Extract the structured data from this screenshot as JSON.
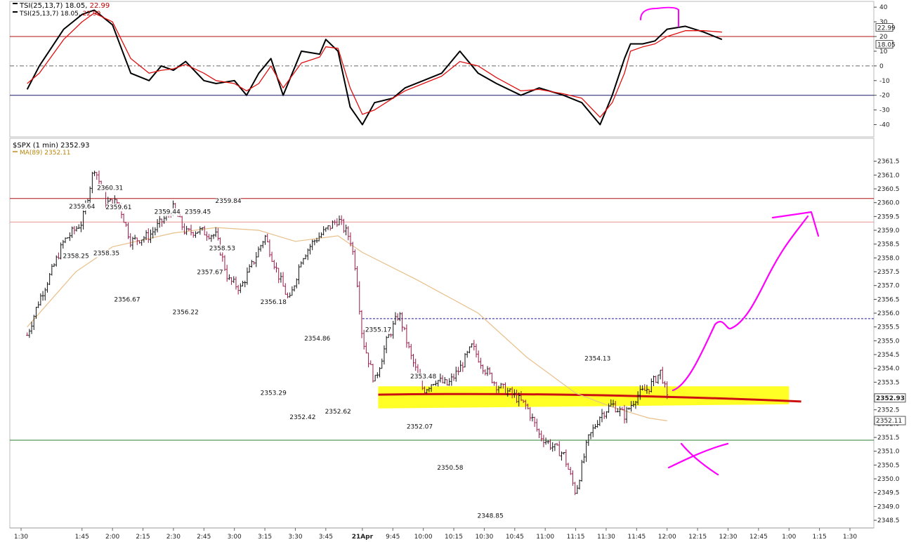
{
  "chart_data": [
    {
      "type": "line",
      "name": "tsi-panel",
      "legend": {
        "tsi_label": "TSI(25,13,7)",
        "tsi_value": "18.05",
        "signal_value": "22.99",
        "placement": "top-left"
      },
      "colors": {
        "tsi": "#000000",
        "signal": "#e01010",
        "upper_ref": "#b01010",
        "lower_ref": "#1a1a6e",
        "zero_ref": "#666666"
      },
      "ylim": [
        -45,
        42
      ],
      "y_ticks": [
        40,
        30,
        20,
        10,
        0,
        -10,
        -20,
        -30,
        -40
      ],
      "reference_lines": [
        20,
        0,
        -20
      ],
      "right_badges": [
        "22.99",
        "18.05"
      ],
      "x": [
        1.3,
        1.4,
        1.6,
        1.75,
        1.85,
        2.0,
        2.15,
        2.3,
        2.4,
        2.5,
        2.6,
        2.75,
        2.85,
        3.0,
        3.1,
        3.2,
        3.3,
        3.4,
        3.55,
        3.7,
        3.75,
        3.85,
        3.95,
        4.05,
        4.15,
        4.3,
        4.4,
        4.55,
        4.7,
        4.85,
        5.0,
        5.15,
        5.35,
        5.5,
        5.7,
        5.85,
        6.0,
        6.1,
        6.2,
        6.25,
        6.35,
        6.45,
        6.55,
        6.7,
        6.85,
        7.0
      ],
      "series": [
        {
          "values": [
            -16,
            0,
            25,
            35,
            38,
            28,
            -5,
            -10,
            0,
            -3,
            3,
            -10,
            -12,
            -10,
            -20,
            -5,
            5,
            -20,
            10,
            8,
            18,
            10,
            -28,
            -40,
            -25,
            -22,
            -15,
            -10,
            -5,
            10,
            -5,
            -12,
            -20,
            -15,
            -20,
            -25,
            -40,
            -20,
            5,
            15,
            15,
            17,
            25,
            27,
            23,
            18
          ]
        },
        {
          "values": [
            -12,
            -5,
            18,
            30,
            36,
            30,
            5,
            -5,
            -3,
            -2,
            1,
            -5,
            -10,
            -12,
            -17,
            -12,
            0,
            -15,
            2,
            6,
            13,
            12,
            -15,
            -33,
            -30,
            -22,
            -17,
            -12,
            -7,
            3,
            0,
            -8,
            -17,
            -16,
            -19,
            -22,
            -35,
            -25,
            -5,
            10,
            13,
            15,
            20,
            24,
            24,
            23
          ]
        }
      ]
    },
    {
      "type": "candlestick",
      "name": "price-panel",
      "legend": {
        "symbol_label": "$SPX (1 min)",
        "symbol_value": "2352.93",
        "ma_label": "MA(89)",
        "ma_value": "2352.11",
        "placement": "top-left"
      },
      "colors": {
        "up": "#111111",
        "down": "#9b1a4a",
        "ma": "#e8c08a",
        "highlight": "#ffff00",
        "annot": "#ff00ff",
        "support": "#cc1111",
        "resist_red": "#b01010",
        "resist_pink": "#e89090",
        "support_green": "#2e7d32",
        "dashed": "#1a1a9e"
      },
      "ylim": [
        2348.4,
        2362.0
      ],
      "y_ticks": [
        "2361.5",
        "2361.0",
        "2360.5",
        "2360.0",
        "2359.5",
        "2359.0",
        "2358.5",
        "2358.0",
        "2357.5",
        "2357.0",
        "2356.5",
        "2356.0",
        "2355.5",
        "2355.0",
        "2354.5",
        "2354.0",
        "2353.5",
        "2353.0",
        "2352.5",
        "2352.0",
        "2351.5",
        "2351.0",
        "2350.5",
        "2350.0",
        "2349.5",
        "2349.0",
        "2348.5"
      ],
      "reference_lines": {
        "red": 2360.15,
        "pink": 2359.3,
        "dashed_blue": 2355.8,
        "green": 2351.4,
        "highlight": 2353.0
      },
      "right_badges": [
        "2352.93",
        "2352.11"
      ],
      "x_tick_labels": [
        "1:30",
        "1:45",
        "2:00",
        "2:15",
        "2:30",
        "2:45",
        "3:00",
        "3:15",
        "3:30",
        "3:45",
        "21Apr",
        "9:45",
        "10:00",
        "10:15",
        "10:30",
        "10:45",
        "11:00",
        "11:15",
        "11:30",
        "11:45",
        "12:00",
        "12:15",
        "12:30",
        "12:45",
        "1:00",
        "1:15",
        "1:30"
      ],
      "x_tick_values": [
        1.25,
        1.75,
        2.0,
        2.25,
        2.5,
        2.75,
        3.0,
        3.25,
        3.5,
        3.75,
        4.05,
        4.3,
        4.55,
        4.8,
        5.05,
        5.3,
        5.55,
        5.8,
        6.05,
        6.3,
        6.55,
        6.8,
        7.05,
        7.3,
        7.55,
        7.8,
        8.05
      ],
      "price_path": [
        [
          1.3,
          2355.2
        ],
        [
          1.4,
          2356.5
        ],
        [
          1.5,
          2357.5
        ],
        [
          1.6,
          2358.6
        ],
        [
          1.75,
          2359.3
        ],
        [
          1.85,
          2361.3
        ],
        [
          1.95,
          2360.0
        ],
        [
          2.05,
          2360.0
        ],
        [
          2.15,
          2358.6
        ],
        [
          2.3,
          2358.8
        ],
        [
          2.4,
          2359.3
        ],
        [
          2.5,
          2359.8
        ],
        [
          2.6,
          2358.9
        ],
        [
          2.7,
          2359.0
        ],
        [
          2.85,
          2358.8
        ],
        [
          2.95,
          2357.2
        ],
        [
          3.05,
          2356.9
        ],
        [
          3.15,
          2357.8
        ],
        [
          3.25,
          2358.8
        ],
        [
          3.35,
          2357.5
        ],
        [
          3.45,
          2356.4
        ],
        [
          3.55,
          2358.0
        ],
        [
          3.65,
          2358.6
        ],
        [
          3.75,
          2359.0
        ],
        [
          3.85,
          2359.4
        ],
        [
          3.95,
          2358.7
        ],
        [
          4.0,
          2357.5
        ],
        [
          4.05,
          2355.1
        ],
        [
          4.15,
          2353.5
        ],
        [
          4.25,
          2355.0
        ],
        [
          4.35,
          2356.0
        ],
        [
          4.45,
          2354.4
        ],
        [
          4.55,
          2353.2
        ],
        [
          4.65,
          2353.6
        ],
        [
          4.75,
          2353.4
        ],
        [
          4.85,
          2354.0
        ],
        [
          4.95,
          2354.8
        ],
        [
          5.05,
          2354.0
        ],
        [
          5.15,
          2353.4
        ],
        [
          5.3,
          2353.0
        ],
        [
          5.4,
          2352.6
        ],
        [
          5.5,
          2351.6
        ],
        [
          5.6,
          2351.2
        ],
        [
          5.7,
          2350.9
        ],
        [
          5.8,
          2349.5
        ],
        [
          5.9,
          2351.4
        ],
        [
          6.0,
          2352.3
        ],
        [
          6.1,
          2352.7
        ],
        [
          6.2,
          2352.3
        ],
        [
          6.3,
          2353.0
        ],
        [
          6.4,
          2353.3
        ],
        [
          6.5,
          2353.9
        ],
        [
          6.55,
          2352.9
        ]
      ],
      "ma_path": [
        [
          1.3,
          2355.5
        ],
        [
          1.7,
          2357.5
        ],
        [
          2.0,
          2358.4
        ],
        [
          2.5,
          2358.9
        ],
        [
          2.85,
          2359.1
        ],
        [
          3.2,
          2359.0
        ],
        [
          3.5,
          2358.6
        ],
        [
          3.85,
          2358.8
        ],
        [
          4.05,
          2358.2
        ],
        [
          4.5,
          2357.2
        ],
        [
          5.0,
          2356.0
        ],
        [
          5.4,
          2354.4
        ],
        [
          5.8,
          2353.1
        ],
        [
          6.1,
          2352.6
        ],
        [
          6.4,
          2352.2
        ],
        [
          6.55,
          2352.1
        ]
      ],
      "price_labels": [
        {
          "x": 1.98,
          "y": 2360.31,
          "text": "2360.31"
        },
        {
          "x": 1.75,
          "y": 2359.64,
          "text": "2359.64"
        },
        {
          "x": 2.05,
          "y": 2359.61,
          "text": "2359.61"
        },
        {
          "x": 2.45,
          "y": 2359.44,
          "text": "2359.44"
        },
        {
          "x": 2.7,
          "y": 2359.45,
          "text": "2359.45"
        },
        {
          "x": 2.95,
          "y": 2359.84,
          "text": "2359.84"
        },
        {
          "x": 1.7,
          "y": 2358.25,
          "text": "2358.25",
          "below": true
        },
        {
          "x": 1.95,
          "y": 2358.35,
          "text": "2358.35",
          "below": true
        },
        {
          "x": 2.12,
          "y": 2356.67,
          "text": "2356.67",
          "below": true
        },
        {
          "x": 2.6,
          "y": 2356.22,
          "text": "2356.22",
          "below": true
        },
        {
          "x": 2.8,
          "y": 2357.67,
          "text": "2357.67",
          "below": true
        },
        {
          "x": 2.9,
          "y": 2358.53,
          "text": "2358.53",
          "below": true
        },
        {
          "x": 3.32,
          "y": 2356.18,
          "text": "2356.18"
        },
        {
          "x": 3.68,
          "y": 2354.86,
          "text": "2354.86"
        },
        {
          "x": 4.18,
          "y": 2355.17,
          "text": "2355.17"
        },
        {
          "x": 4.55,
          "y": 2353.48,
          "text": "2353.48"
        },
        {
          "x": 3.32,
          "y": 2353.29,
          "text": "2353.29",
          "below": true
        },
        {
          "x": 3.56,
          "y": 2352.42,
          "text": "2352.42",
          "below": true
        },
        {
          "x": 3.85,
          "y": 2352.62,
          "text": "2352.62",
          "below": true
        },
        {
          "x": 4.52,
          "y": 2352.07,
          "text": "2352.07",
          "below": true
        },
        {
          "x": 4.77,
          "y": 2350.58,
          "text": "2350.58",
          "below": true
        },
        {
          "x": 5.1,
          "y": 2348.85,
          "text": "2348.85",
          "below": true
        },
        {
          "x": 5.98,
          "y": 2354.13,
          "text": "2354.13"
        }
      ]
    }
  ]
}
